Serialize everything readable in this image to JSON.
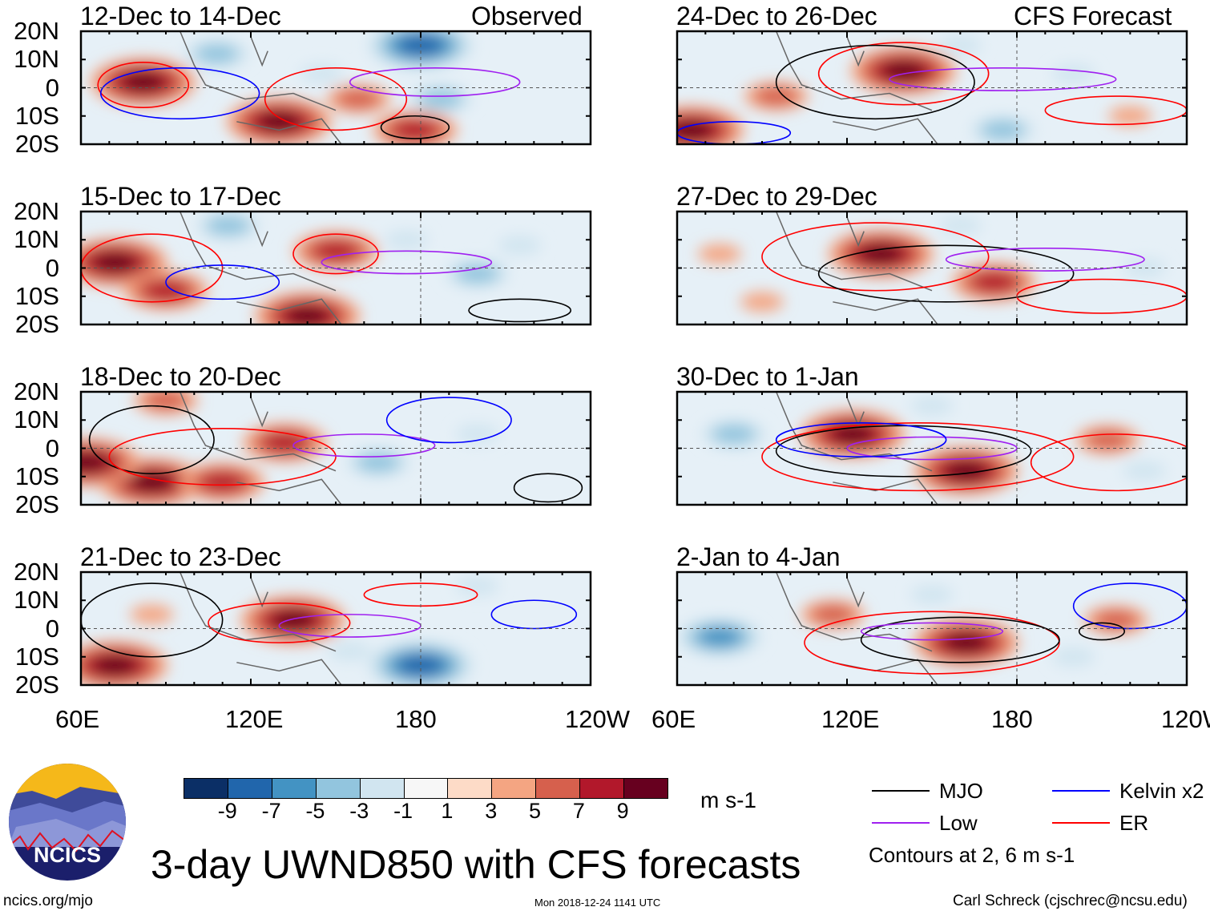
{
  "title": "3-day UWND850 with CFS forecasts",
  "units": "m s-1",
  "footer": {
    "left": "ncics.org/mjo",
    "center": "Mon 2018-12-24 1141 UTC",
    "right": "Carl Schreck (cjschrec@ncsu.edu)"
  },
  "logo_text": "NCICS",
  "column_labels": {
    "left": "Observed",
    "right": "CFS Forecast"
  },
  "lat_ticks": [
    "20N",
    "10N",
    "0",
    "10S",
    "20S"
  ],
  "lon_ticks": [
    "60E",
    "120E",
    "180",
    "120W"
  ],
  "colorbar": {
    "labels": [
      "-9",
      "-7",
      "-5",
      "-3",
      "-1",
      "1",
      "3",
      "5",
      "7",
      "9"
    ],
    "colors": [
      "#0b2f66",
      "#2166ac",
      "#4393c3",
      "#92c5de",
      "#d1e5f0",
      "#f7f7f7",
      "#fddbc7",
      "#f4a582",
      "#d6604d",
      "#b2182b",
      "#67001f"
    ]
  },
  "legend": {
    "items": [
      {
        "label": "MJO",
        "color": "#000000"
      },
      {
        "label": "Kelvin x2",
        "color": "#0000ff"
      },
      {
        "label": "Low",
        "color": "#a020f0"
      },
      {
        "label": "ER",
        "color": "#ff0000"
      }
    ],
    "note": "Contours at 2, 6 m s-1"
  },
  "chart_data": {
    "type": "heatmap",
    "title": "3-day UWND850 with CFS forecasts",
    "xlim": [
      60,
      240
    ],
    "ylim": [
      -20,
      20
    ],
    "panels": [
      {
        "title": "12-Dec to 14-Dec",
        "column": "left",
        "row": 0,
        "anomalies": [
          [
            82,
            2,
            9
          ],
          [
            130,
            -12,
            9
          ],
          [
            158,
            -4,
            5
          ],
          [
            178,
            -15,
            7
          ],
          [
            180,
            15,
            -9
          ],
          [
            187,
            -4,
            -5
          ],
          [
            108,
            12,
            -5
          ],
          [
            145,
            5,
            -3
          ]
        ],
        "contours": [
          [
            "ER",
            82,
            1,
            16,
            8
          ],
          [
            "ER",
            150,
            -4,
            25,
            11
          ],
          [
            "Low",
            185,
            2,
            30,
            5
          ],
          [
            "MJO",
            178,
            -14,
            12,
            4
          ],
          [
            "Kelvin",
            95,
            -2,
            28,
            9
          ]
        ]
      },
      {
        "title": "15-Dec to 17-Dec",
        "column": "left",
        "row": 1,
        "anomalies": [
          [
            72,
            2,
            9
          ],
          [
            90,
            -8,
            7
          ],
          [
            150,
            6,
            7
          ],
          [
            140,
            -17,
            9
          ],
          [
            200,
            -2,
            -5
          ],
          [
            112,
            15,
            -5
          ],
          [
            175,
            10,
            -3
          ],
          [
            215,
            8,
            -3
          ]
        ],
        "contours": [
          [
            "ER",
            85,
            0,
            25,
            12
          ],
          [
            "ER",
            150,
            5,
            15,
            7
          ],
          [
            "Low",
            175,
            2,
            30,
            4
          ],
          [
            "MJO",
            215,
            -15,
            18,
            4
          ],
          [
            "Kelvin",
            110,
            -5,
            20,
            6
          ]
        ]
      },
      {
        "title": "18-Dec to 20-Dec",
        "column": "left",
        "row": 2,
        "anomalies": [
          [
            85,
            -12,
            9
          ],
          [
            62,
            -5,
            9
          ],
          [
            132,
            2,
            7
          ],
          [
            165,
            -5,
            -5
          ],
          [
            200,
            5,
            -3
          ],
          [
            90,
            17,
            5
          ],
          [
            110,
            -12,
            7
          ]
        ],
        "contours": [
          [
            "MJO",
            85,
            3,
            22,
            12
          ],
          [
            "ER",
            110,
            -3,
            40,
            10
          ],
          [
            "Low",
            160,
            1,
            25,
            4
          ],
          [
            "Kelvin",
            190,
            10,
            22,
            8
          ],
          [
            "MJO",
            225,
            -14,
            12,
            5
          ]
        ]
      },
      {
        "title": "21-Dec to 23-Dec",
        "column": "left",
        "row": 3,
        "anomalies": [
          [
            72,
            -13,
            9
          ],
          [
            135,
            3,
            9
          ],
          [
            180,
            -13,
            -9
          ],
          [
            200,
            15,
            -3
          ],
          [
            85,
            5,
            3
          ],
          [
            155,
            -8,
            -3
          ]
        ],
        "contours": [
          [
            "MJO",
            85,
            3,
            25,
            13
          ],
          [
            "ER",
            130,
            2,
            25,
            7
          ],
          [
            "Low",
            155,
            1,
            25,
            4
          ],
          [
            "Kelvin",
            220,
            5,
            15,
            5
          ],
          [
            "ER",
            180,
            12,
            20,
            4
          ]
        ]
      },
      {
        "title": "24-Dec to 26-Dec",
        "column": "right",
        "row": 0,
        "anomalies": [
          [
            140,
            6,
            9
          ],
          [
            65,
            -15,
            9
          ],
          [
            95,
            -3,
            5
          ],
          [
            175,
            -15,
            -5
          ],
          [
            160,
            15,
            -3
          ],
          [
            220,
            -10,
            3
          ],
          [
            200,
            5,
            -3
          ]
        ],
        "contours": [
          [
            "ER",
            140,
            5,
            30,
            11
          ],
          [
            "MJO",
            130,
            2,
            35,
            13
          ],
          [
            "Low",
            175,
            3,
            40,
            4
          ],
          [
            "ER",
            215,
            -8,
            25,
            5
          ],
          [
            "Kelvin",
            80,
            -16,
            20,
            4
          ]
        ]
      },
      {
        "title": "27-Dec to 29-Dec",
        "column": "right",
        "row": 1,
        "anomalies": [
          [
            132,
            5,
            9
          ],
          [
            172,
            -5,
            7
          ],
          [
            90,
            -12,
            3
          ],
          [
            160,
            15,
            -3
          ],
          [
            225,
            0,
            -3
          ],
          [
            75,
            5,
            3
          ]
        ],
        "contours": [
          [
            "ER",
            130,
            4,
            40,
            12
          ],
          [
            "MJO",
            155,
            -2,
            45,
            10
          ],
          [
            "Low",
            190,
            3,
            35,
            4
          ],
          [
            "ER",
            210,
            -10,
            30,
            6
          ]
        ]
      },
      {
        "title": "30-Dec to 1-Jan",
        "column": "right",
        "row": 2,
        "anomalies": [
          [
            122,
            5,
            9
          ],
          [
            162,
            -8,
            9
          ],
          [
            212,
            3,
            5
          ],
          [
            80,
            5,
            -5
          ],
          [
            150,
            15,
            -3
          ],
          [
            225,
            -8,
            -3
          ]
        ],
        "contours": [
          [
            "ER",
            145,
            -3,
            55,
            12
          ],
          [
            "MJO",
            140,
            -1,
            45,
            9
          ],
          [
            "Low",
            150,
            0,
            30,
            4
          ],
          [
            "Kelvin",
            125,
            3,
            30,
            6
          ],
          [
            "ER",
            215,
            -5,
            30,
            10
          ]
        ]
      },
      {
        "title": "2-Jan to 4-Jan",
        "column": "right",
        "row": 3,
        "anomalies": [
          [
            162,
            -5,
            9
          ],
          [
            115,
            5,
            5
          ],
          [
            75,
            -3,
            -7
          ],
          [
            215,
            3,
            5
          ],
          [
            150,
            12,
            -3
          ],
          [
            200,
            -10,
            -3
          ]
        ],
        "contours": [
          [
            "ER",
            150,
            -5,
            45,
            11
          ],
          [
            "MJO",
            160,
            -4,
            35,
            8
          ],
          [
            "Low",
            150,
            -1,
            25,
            3
          ],
          [
            "Kelvin",
            220,
            8,
            20,
            8
          ],
          [
            "MJO",
            210,
            -1,
            8,
            3
          ]
        ]
      }
    ]
  }
}
